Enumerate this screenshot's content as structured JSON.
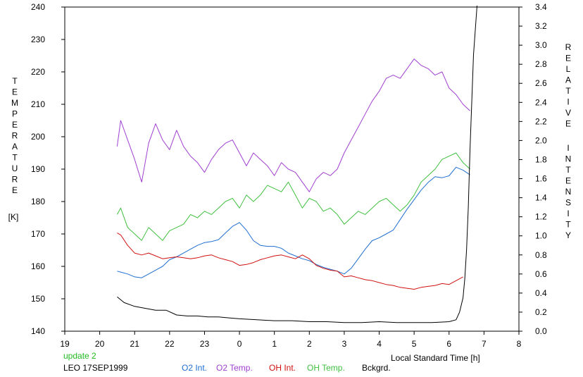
{
  "chart_data": {
    "type": "line",
    "left_axis_label_letters": [
      "T",
      "E",
      "M",
      "P",
      "E",
      "R",
      "A",
      "T",
      "U",
      "R",
      "E"
    ],
    "left_axis_unit": "[K]",
    "right_axis_label_word1": [
      "R",
      "E",
      "L",
      "A",
      "T",
      "I",
      "V",
      "E"
    ],
    "right_axis_label_word2": [
      "I",
      "N",
      "T",
      "E",
      "N",
      "S",
      "I",
      "T",
      "Y"
    ],
    "xlabel": "Local Standard Time [h]",
    "ylim_left": [
      140,
      240
    ],
    "ylim_right": [
      0.0,
      3.4
    ],
    "x_ticks": [
      {
        "v": 19,
        "label": "19"
      },
      {
        "v": 20,
        "label": "20"
      },
      {
        "v": 21,
        "label": "21"
      },
      {
        "v": 22,
        "label": "22"
      },
      {
        "v": 23,
        "label": "23"
      },
      {
        "v": 24,
        "label": "0"
      },
      {
        "v": 25,
        "label": "1"
      },
      {
        "v": 26,
        "label": "2"
      },
      {
        "v": 27,
        "label": "3"
      },
      {
        "v": 28,
        "label": "4"
      },
      {
        "v": 29,
        "label": "5"
      },
      {
        "v": 30,
        "label": "6"
      },
      {
        "v": 31,
        "label": "7"
      },
      {
        "v": 32,
        "label": "8"
      }
    ],
    "y_ticks_left": [
      "140",
      "150",
      "160",
      "170",
      "180",
      "190",
      "200",
      "210",
      "220",
      "230",
      "240"
    ],
    "y_ticks_right": [
      "0.0",
      "0.2",
      "0.4",
      "0.6",
      "0.8",
      "1.0",
      "1.2",
      "1.4",
      "1.6",
      "1.8",
      "2.0",
      "2.2",
      "2.4",
      "2.6",
      "2.8",
      "3.0",
      "3.2",
      "3.4"
    ],
    "series": [
      {
        "name": "O2 Int.",
        "color": "#1f6fd0",
        "axis": "right",
        "x": [
          20.5,
          20.6,
          20.8,
          21.0,
          21.2,
          21.4,
          21.6,
          21.8,
          22.0,
          22.2,
          22.4,
          22.6,
          22.8,
          23.0,
          23.2,
          23.4,
          23.6,
          23.8,
          24.0,
          24.2,
          24.4,
          24.6,
          24.8,
          25.0,
          25.2,
          25.4,
          25.6,
          25.8,
          26.0,
          26.2,
          26.4,
          26.6,
          26.8,
          27.0,
          27.2,
          27.4,
          27.6,
          27.8,
          28.0,
          28.2,
          28.4,
          28.6,
          28.8,
          29.0,
          29.2,
          29.4,
          29.6,
          29.8,
          30.0,
          30.2,
          30.4,
          30.6
        ],
        "y": [
          0.63,
          0.62,
          0.6,
          0.57,
          0.56,
          0.6,
          0.64,
          0.68,
          0.75,
          0.78,
          0.82,
          0.86,
          0.9,
          0.93,
          0.94,
          0.96,
          1.03,
          1.1,
          1.14,
          1.06,
          0.95,
          0.9,
          0.89,
          0.89,
          0.87,
          0.82,
          0.79,
          0.76,
          0.74,
          0.7,
          0.67,
          0.65,
          0.63,
          0.6,
          0.66,
          0.76,
          0.86,
          0.95,
          0.98,
          1.02,
          1.06,
          1.17,
          1.28,
          1.38,
          1.48,
          1.56,
          1.62,
          1.61,
          1.63,
          1.72,
          1.69,
          1.64
        ]
      },
      {
        "name": "O2 Temp.",
        "color": "#a040d0",
        "axis": "left",
        "x": [
          20.5,
          20.6,
          20.8,
          21.0,
          21.2,
          21.4,
          21.6,
          21.8,
          22.0,
          22.2,
          22.4,
          22.6,
          22.8,
          23.0,
          23.2,
          23.4,
          23.6,
          23.8,
          24.0,
          24.2,
          24.4,
          24.6,
          24.8,
          25.0,
          25.2,
          25.4,
          25.6,
          25.8,
          26.0,
          26.2,
          26.4,
          26.6,
          26.8,
          27.0,
          27.2,
          27.4,
          27.6,
          27.8,
          28.0,
          28.2,
          28.4,
          28.6,
          28.8,
          29.0,
          29.2,
          29.4,
          29.6,
          29.8,
          30.0,
          30.2,
          30.4,
          30.6
        ],
        "y": [
          197,
          205,
          199,
          193,
          186,
          198,
          204,
          199,
          196,
          202,
          197,
          194,
          192,
          189,
          193,
          196,
          198,
          199,
          195,
          191,
          195,
          193,
          191,
          188,
          192,
          190,
          189,
          186,
          183,
          187,
          189,
          188,
          190,
          195,
          199,
          203,
          207,
          211,
          214,
          218,
          219,
          218,
          221,
          224,
          222,
          221,
          219,
          220,
          215,
          213,
          210,
          208
        ]
      },
      {
        "name": "OH Int.",
        "color": "#d01010",
        "axis": "right",
        "x": [
          20.5,
          20.6,
          20.8,
          21.0,
          21.2,
          21.4,
          21.6,
          21.8,
          22.0,
          22.2,
          22.4,
          22.6,
          22.8,
          23.0,
          23.2,
          23.4,
          23.6,
          23.8,
          24.0,
          24.2,
          24.4,
          24.6,
          24.8,
          25.0,
          25.2,
          25.4,
          25.6,
          25.8,
          26.0,
          26.2,
          26.4,
          26.6,
          26.8,
          27.0,
          27.2,
          27.4,
          27.6,
          27.8,
          28.0,
          28.2,
          28.4,
          28.6,
          28.8,
          29.0,
          29.2,
          29.4,
          29.6,
          29.8,
          30.0,
          30.2,
          30.4
        ],
        "y": [
          1.03,
          1.01,
          0.9,
          0.82,
          0.8,
          0.82,
          0.79,
          0.76,
          0.77,
          0.78,
          0.77,
          0.76,
          0.77,
          0.79,
          0.8,
          0.77,
          0.75,
          0.73,
          0.69,
          0.7,
          0.72,
          0.75,
          0.77,
          0.79,
          0.8,
          0.78,
          0.76,
          0.8,
          0.76,
          0.69,
          0.66,
          0.64,
          0.63,
          0.57,
          0.58,
          0.56,
          0.54,
          0.53,
          0.51,
          0.49,
          0.48,
          0.46,
          0.45,
          0.44,
          0.46,
          0.47,
          0.48,
          0.5,
          0.49,
          0.53,
          0.57
        ]
      },
      {
        "name": "OH Temp.",
        "color": "#40c040",
        "axis": "left",
        "x": [
          20.5,
          20.6,
          20.8,
          21.0,
          21.2,
          21.4,
          21.6,
          21.8,
          22.0,
          22.2,
          22.4,
          22.6,
          22.8,
          23.0,
          23.2,
          23.4,
          23.6,
          23.8,
          24.0,
          24.2,
          24.4,
          24.6,
          24.8,
          25.0,
          25.2,
          25.4,
          25.6,
          25.8,
          26.0,
          26.2,
          26.4,
          26.6,
          26.8,
          27.0,
          27.2,
          27.4,
          27.6,
          27.8,
          28.0,
          28.2,
          28.4,
          28.6,
          28.8,
          29.0,
          29.2,
          29.4,
          29.6,
          29.8,
          30.0,
          30.2,
          30.4,
          30.6
        ],
        "y": [
          176,
          178,
          172,
          170,
          168,
          172,
          170,
          168,
          171,
          172,
          173,
          176,
          175,
          177,
          176,
          178,
          180,
          181,
          178,
          182,
          180,
          182,
          185,
          184,
          183,
          186,
          182,
          178,
          181,
          180,
          177,
          178,
          176,
          173,
          175,
          177,
          176,
          178,
          180,
          181,
          179,
          177,
          179,
          182,
          186,
          188,
          190,
          193,
          194,
          195,
          192,
          190
        ]
      },
      {
        "name": "Bckgrd.",
        "color": "#000000",
        "axis": "right",
        "x": [
          20.5,
          20.7,
          21.0,
          21.3,
          21.6,
          21.9,
          22.2,
          22.5,
          22.8,
          23.1,
          23.4,
          23.7,
          24.0,
          24.5,
          25.0,
          25.5,
          26.0,
          26.5,
          27.0,
          27.5,
          28.0,
          28.5,
          29.0,
          29.5,
          30.0,
          30.2,
          30.3,
          30.4,
          30.45,
          30.5,
          30.55,
          30.6,
          30.7,
          30.8
        ],
        "y": [
          0.36,
          0.3,
          0.26,
          0.24,
          0.22,
          0.22,
          0.17,
          0.16,
          0.16,
          0.15,
          0.15,
          0.14,
          0.13,
          0.12,
          0.11,
          0.11,
          0.1,
          0.1,
          0.09,
          0.09,
          0.1,
          0.09,
          0.09,
          0.09,
          0.1,
          0.12,
          0.2,
          0.35,
          0.55,
          0.85,
          1.3,
          1.9,
          2.9,
          3.5
        ]
      }
    ]
  },
  "footer": {
    "status": "update 2",
    "station": "LEO 17SEP1999",
    "legend": [
      {
        "label": "O2 Int.",
        "color": "#1f6fd0"
      },
      {
        "label": "O2 Temp.",
        "color": "#a040d0"
      },
      {
        "label": "OH Int.",
        "color": "#d01010"
      },
      {
        "label": "OH Temp.",
        "color": "#40c040"
      },
      {
        "label": "Bckgrd.",
        "color": "#000000"
      }
    ]
  },
  "colors": {
    "status": "#22bb22",
    "axis": "#000000"
  }
}
